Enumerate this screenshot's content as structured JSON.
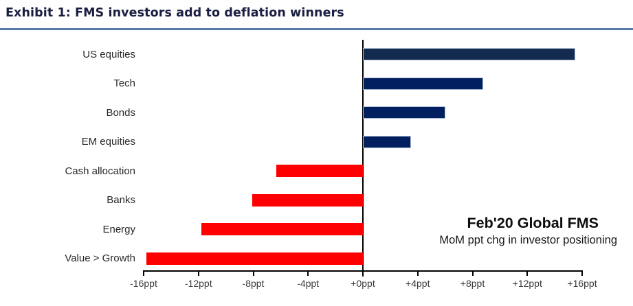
{
  "header": {
    "title": "Exhibit 1: FMS investors add to deflation winners",
    "title_color": "#1a1e40",
    "underline_color": "#5b79a8"
  },
  "annotation": {
    "line1": "Feb'20 Global FMS",
    "line2": "MoM ppt chg in investor positioning"
  },
  "chart_data": {
    "type": "bar",
    "orientation": "horizontal",
    "title": "Exhibit 1: FMS investors add to deflation winners",
    "subtitle": "Feb'20 Global FMS — MoM ppt chg in investor positioning",
    "categories": [
      "US equities",
      "Tech",
      "Bonds",
      "EM equities",
      "Cash allocation",
      "Banks",
      "Energy",
      "Value > Growth"
    ],
    "values": [
      15.5,
      8.8,
      6.0,
      3.5,
      -6.3,
      -8.1,
      -11.8,
      -15.8
    ],
    "unit": "ppt",
    "xlabel": "",
    "ylabel": "",
    "xlim": [
      -16,
      16
    ],
    "x_tick_values": [
      -16,
      -12,
      -8,
      -4,
      0,
      4,
      8,
      12,
      16
    ],
    "x_tick_labels": [
      "-16ppt",
      "-12ppt",
      "-8ppt",
      "-4ppt",
      "+0ppt",
      "+4ppt",
      "+8ppt",
      "+12ppt",
      "+16ppt"
    ],
    "grid": false,
    "legend": "none",
    "colors": {
      "positive_highlight": "#122b4e",
      "positive": "#02205f",
      "negative": "#ff0000",
      "bar_border": "#aebdd6",
      "axis": "#000000"
    },
    "bar_colors": [
      "#122b4e",
      "#02205f",
      "#02205f",
      "#02205f",
      "#ff0000",
      "#ff0000",
      "#ff0000",
      "#ff0000"
    ]
  }
}
